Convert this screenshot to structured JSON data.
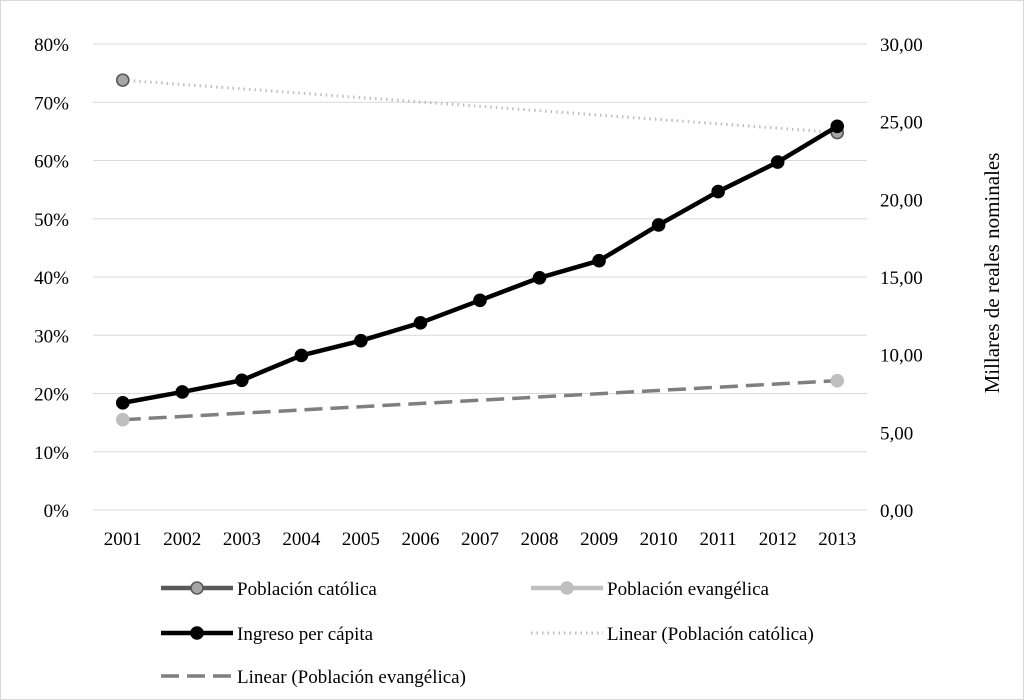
{
  "chart_data": {
    "type": "line",
    "title": "",
    "x": [
      "2001",
      "2002",
      "2003",
      "2004",
      "2005",
      "2006",
      "2007",
      "2008",
      "2009",
      "2010",
      "2011",
      "2012",
      "2013"
    ],
    "y_left": {
      "ticks": [
        "0%",
        "10%",
        "20%",
        "30%",
        "40%",
        "50%",
        "60%",
        "70%",
        "80%"
      ],
      "range": [
        0,
        80
      ]
    },
    "y_right": {
      "label": "Millares de reales nominales",
      "ticks": [
        "0,00",
        "5,00",
        "10,00",
        "15,00",
        "20,00",
        "25,00",
        "30,00"
      ],
      "range": [
        0,
        30
      ]
    },
    "grid": true,
    "legend_position": "bottom",
    "series": [
      {
        "name": "Población católica",
        "axis": "left",
        "values": [
          73.8,
          null,
          null,
          null,
          null,
          null,
          null,
          null,
          null,
          null,
          null,
          null,
          64.8
        ],
        "color": "#595959",
        "marker_fill": "#a6a6a6",
        "style": "line-marker"
      },
      {
        "name": "Población evangélica",
        "axis": "left",
        "values": [
          15.5,
          null,
          null,
          null,
          null,
          null,
          null,
          null,
          null,
          null,
          null,
          null,
          22.2
        ],
        "color": "#bfbfbf",
        "marker_fill": "#bfbfbf",
        "style": "line-marker"
      },
      {
        "name": "Ingreso per cápita",
        "axis": "right",
        "values": [
          6.9,
          7.6,
          8.35,
          9.95,
          10.9,
          12.05,
          13.5,
          14.95,
          16.05,
          18.35,
          20.5,
          22.4,
          24.7
        ],
        "color": "#000000",
        "marker_fill": "#000000",
        "style": "line-marker"
      },
      {
        "name": "Linear (Población católica)",
        "axis": "left",
        "trend_of": "Población católica",
        "color": "#bfbfbf",
        "style": "dotted"
      },
      {
        "name": "Linear (Población evangélica)",
        "axis": "left",
        "trend_of": "Población evangélica",
        "color": "#7f7f7f",
        "style": "dashed"
      }
    ],
    "legend": [
      "Población católica",
      "Población evangélica",
      "Ingreso per cápita",
      "Linear (Población católica)",
      "Linear (Población evangélica)"
    ]
  }
}
